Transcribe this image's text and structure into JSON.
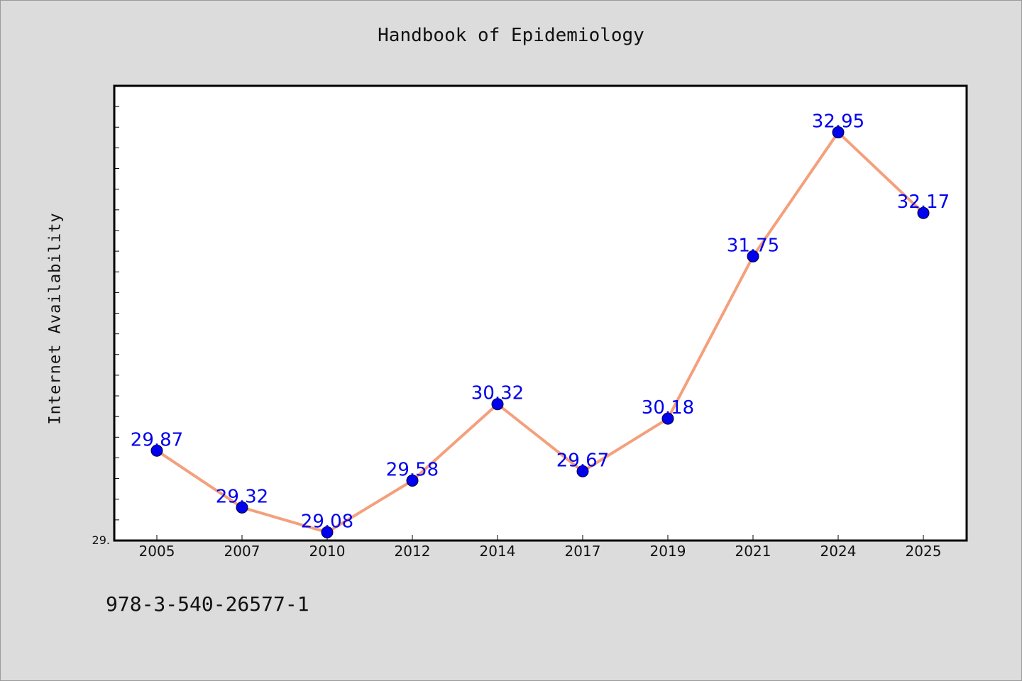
{
  "footer": "978-3-540-26577-1",
  "chart_data": {
    "type": "line",
    "title": "Handbook of Epidemiology",
    "xlabel": "",
    "ylabel": "Internet Availability",
    "categories": [
      "2005",
      "2007",
      "2010",
      "2012",
      "2014",
      "2017",
      "2019",
      "2021",
      "2024",
      "2025"
    ],
    "series": [
      {
        "values": [
          29.87,
          29.32,
          29.08,
          29.58,
          30.32,
          29.67,
          30.18,
          31.75,
          32.95,
          32.17
        ],
        "data_labels": [
          "29.87",
          "29.32",
          "29.08",
          "29.58",
          "30.32",
          "29.67",
          "30.18",
          "31.75",
          "32.95",
          "32.17"
        ]
      }
    ],
    "ylim": [
      29.0,
      33.4
    ],
    "y_tick_labels": [
      "29."
    ],
    "grid": false,
    "legend": "none",
    "colors": {
      "line": "#f4a07c",
      "marker": "#0000ee",
      "label": "#0000ee",
      "plot_bg": "#ffffff",
      "page_bg": "#dcdcdc"
    }
  }
}
